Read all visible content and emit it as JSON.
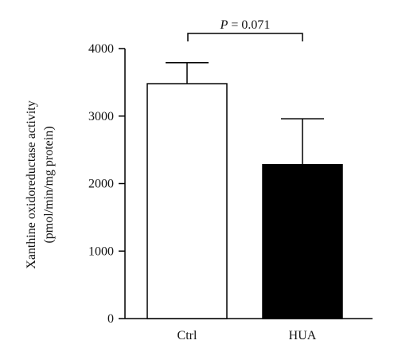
{
  "chart_data": {
    "type": "bar",
    "categories": [
      "Ctrl",
      "HUA"
    ],
    "values": [
      3480,
      2280
    ],
    "error_upper": [
      3790,
      2960
    ],
    "ylabel_line1": "Xanthine oxidoreductase activity",
    "ylabel_line2": "(pmol/min/mg protein)",
    "ylim": [
      0,
      4000
    ],
    "yticks": [
      0,
      1000,
      2000,
      3000,
      4000
    ],
    "ytick_labels": [
      "0",
      "1000",
      "2000",
      "3000",
      "4000"
    ],
    "bar_fills": [
      "#ffffff",
      "#000000"
    ],
    "annotation": {
      "p_symbol": "P",
      "p_rest": " = 0.071"
    },
    "grid": false
  }
}
